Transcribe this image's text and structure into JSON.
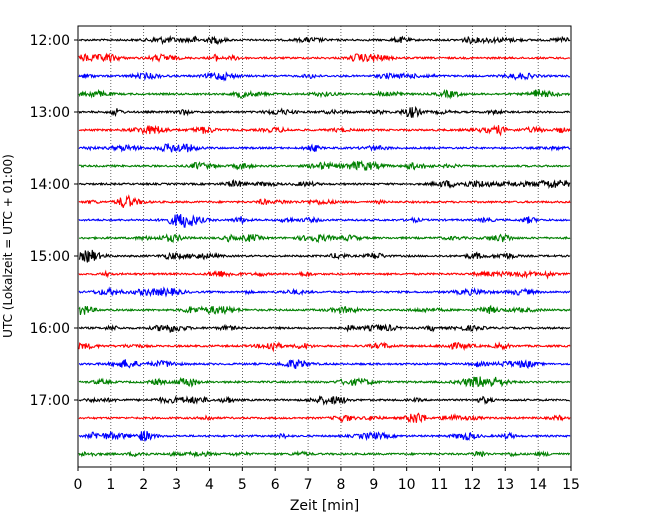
{
  "chart_data": {
    "type": "line",
    "title": "",
    "xlabel": "Zeit  [min]",
    "ylabel": "UTC (Lokalzeit = UTC + 01:00)",
    "xlim": [
      0,
      15
    ],
    "x_ticks": [
      "0",
      "1",
      "2",
      "3",
      "4",
      "5",
      "6",
      "7",
      "8",
      "9",
      "10",
      "11",
      "12",
      "13",
      "14",
      "15"
    ],
    "y_ticks": [
      "12:00",
      "13:00",
      "14:00",
      "15:00",
      "16:00",
      "17:00"
    ],
    "trace_interval_minutes": 15,
    "trace_colors": [
      "#000000",
      "#ff0000",
      "#0000ff",
      "#008000"
    ],
    "grid": "vertical dotted",
    "traces": [
      {
        "start": "12:00"
      },
      {
        "start": "12:15"
      },
      {
        "start": "12:30"
      },
      {
        "start": "12:45"
      },
      {
        "start": "13:00"
      },
      {
        "start": "13:15"
      },
      {
        "start": "13:30"
      },
      {
        "start": "13:45"
      },
      {
        "start": "14:00"
      },
      {
        "start": "14:15"
      },
      {
        "start": "14:30"
      },
      {
        "start": "14:45"
      },
      {
        "start": "15:00"
      },
      {
        "start": "15:15"
      },
      {
        "start": "15:30"
      },
      {
        "start": "15:45"
      },
      {
        "start": "16:00"
      },
      {
        "start": "16:15"
      },
      {
        "start": "16:30"
      },
      {
        "start": "16:45"
      },
      {
        "start": "17:00"
      },
      {
        "start": "17:15"
      },
      {
        "start": "17:30"
      },
      {
        "start": "17:45"
      }
    ]
  }
}
